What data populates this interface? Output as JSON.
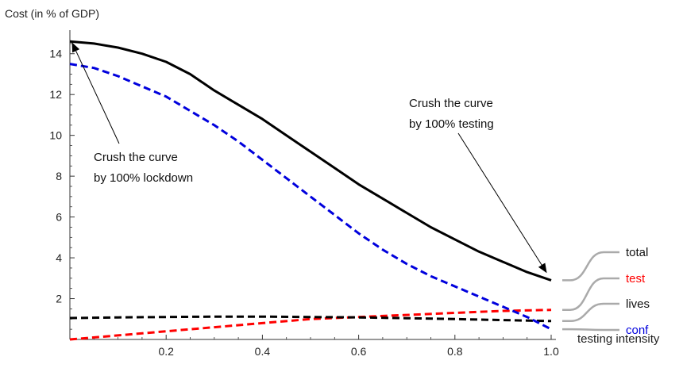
{
  "chart_data": {
    "type": "line",
    "ylabel": "Cost (in % of GDP)",
    "xlabel": "testing intensity",
    "xlim": [
      0,
      1
    ],
    "ylim": [
      0,
      15
    ],
    "x_ticks": [
      0.2,
      0.4,
      0.6,
      0.8,
      1.0
    ],
    "x_tick_labels": [
      "0.2",
      "0.4",
      "0.6",
      "0.8",
      "1.0"
    ],
    "y_ticks": [
      2,
      4,
      6,
      8,
      10,
      12,
      14
    ],
    "y_tick_labels": [
      "2",
      "4",
      "6",
      "8",
      "10",
      "12",
      "14"
    ],
    "grid": false,
    "legend_position": "right",
    "series": [
      {
        "name": "total",
        "color": "#000000",
        "style": "solid",
        "x": [
          0,
          0.05,
          0.1,
          0.15,
          0.2,
          0.25,
          0.3,
          0.35,
          0.4,
          0.45,
          0.5,
          0.55,
          0.6,
          0.65,
          0.7,
          0.75,
          0.8,
          0.85,
          0.9,
          0.95,
          1.0
        ],
        "values": [
          14.6,
          14.5,
          14.3,
          14.0,
          13.6,
          13.0,
          12.2,
          11.5,
          10.8,
          10.0,
          9.2,
          8.4,
          7.6,
          6.9,
          6.2,
          5.5,
          4.9,
          4.3,
          3.8,
          3.3,
          2.9
        ]
      },
      {
        "name": "test",
        "color": "#ff0000",
        "style": "dashed",
        "x": [
          0,
          0.1,
          0.2,
          0.3,
          0.4,
          0.5,
          0.6,
          0.7,
          0.8,
          0.9,
          1.0
        ],
        "values": [
          0.0,
          0.2,
          0.4,
          0.6,
          0.8,
          1.0,
          1.1,
          1.2,
          1.3,
          1.4,
          1.45
        ]
      },
      {
        "name": "lives",
        "color": "#000000",
        "style": "dashed",
        "x": [
          0,
          0.1,
          0.2,
          0.3,
          0.4,
          0.5,
          0.6,
          0.7,
          0.8,
          0.9,
          1.0
        ],
        "values": [
          1.05,
          1.08,
          1.1,
          1.12,
          1.12,
          1.1,
          1.08,
          1.04,
          1.0,
          0.95,
          0.9
        ]
      },
      {
        "name": "conf",
        "color": "#0000dd",
        "style": "dashed",
        "x": [
          0,
          0.05,
          0.1,
          0.15,
          0.2,
          0.25,
          0.3,
          0.35,
          0.4,
          0.45,
          0.5,
          0.55,
          0.6,
          0.65,
          0.7,
          0.75,
          0.8,
          0.85,
          0.9,
          0.95,
          1.0
        ],
        "values": [
          13.5,
          13.3,
          12.9,
          12.4,
          11.9,
          11.2,
          10.5,
          9.7,
          8.8,
          7.9,
          7.0,
          6.1,
          5.2,
          4.4,
          3.7,
          3.1,
          2.6,
          2.1,
          1.6,
          1.1,
          0.5
        ]
      }
    ],
    "annotations": [
      {
        "lines": [
          "Crush the curve",
          "by 100% lockdown"
        ],
        "points_to": [
          0.0,
          14.6
        ]
      },
      {
        "lines": [
          "Crush the curve",
          "by 100% testing"
        ],
        "points_to": [
          1.0,
          2.9
        ]
      }
    ]
  }
}
